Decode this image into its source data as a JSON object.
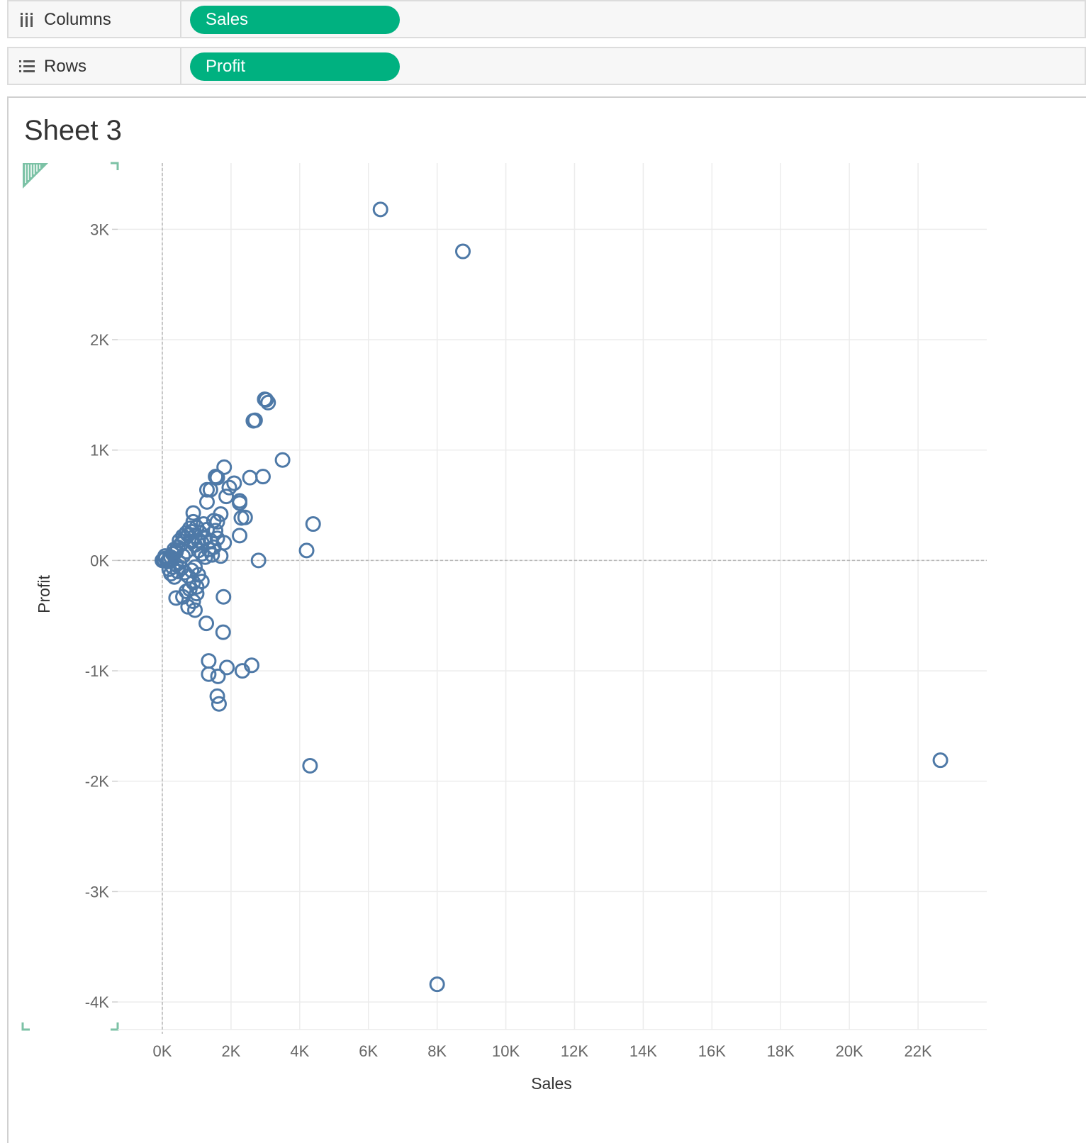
{
  "shelves": {
    "columns": {
      "label": "Columns",
      "icon": "columns-icon",
      "pill": "Sales"
    },
    "rows": {
      "label": "Rows",
      "icon": "rows-icon",
      "pill": "Profit"
    },
    "pill_color": "#00b180"
  },
  "sheet": {
    "title": "Sheet 3"
  },
  "chart_data": {
    "type": "scatter",
    "title": "Sheet 3",
    "xlabel": "Sales",
    "ylabel": "Profit",
    "xlim": [
      -1300,
      24000
    ],
    "ylim": [
      -4250,
      3600
    ],
    "x_ticks": [
      {
        "value": 0,
        "label": "0K"
      },
      {
        "value": 2000,
        "label": "2K"
      },
      {
        "value": 4000,
        "label": "4K"
      },
      {
        "value": 6000,
        "label": "6K"
      },
      {
        "value": 8000,
        "label": "8K"
      },
      {
        "value": 10000,
        "label": "10K"
      },
      {
        "value": 12000,
        "label": "12K"
      },
      {
        "value": 14000,
        "label": "14K"
      },
      {
        "value": 16000,
        "label": "16K"
      },
      {
        "value": 18000,
        "label": "18K"
      },
      {
        "value": 20000,
        "label": "20K"
      },
      {
        "value": 22000,
        "label": "22K"
      }
    ],
    "y_ticks": [
      {
        "value": 3000,
        "label": "3K"
      },
      {
        "value": 2000,
        "label": "2K"
      },
      {
        "value": 1000,
        "label": "1K"
      },
      {
        "value": 0,
        "label": "0K"
      },
      {
        "value": -1000,
        "label": "-1K"
      },
      {
        "value": -2000,
        "label": "-2K"
      },
      {
        "value": -3000,
        "label": "-3K"
      },
      {
        "value": -4000,
        "label": "-4K"
      }
    ],
    "grid": true,
    "mark": "open-circle",
    "mark_color": "#4e79a7",
    "series": [
      {
        "points": [
          [
            6350,
            3180
          ],
          [
            8750,
            2800
          ],
          [
            3020,
            1455
          ],
          [
            3080,
            1430
          ],
          [
            2980,
            1460
          ],
          [
            2700,
            1270
          ],
          [
            2650,
            1265
          ],
          [
            3500,
            910
          ],
          [
            1800,
            845
          ],
          [
            1550,
            760
          ],
          [
            1600,
            750
          ],
          [
            2550,
            750
          ],
          [
            2930,
            760
          ],
          [
            2090,
            700
          ],
          [
            1950,
            660
          ],
          [
            1300,
            640
          ],
          [
            1400,
            640
          ],
          [
            1860,
            580
          ],
          [
            2250,
            520
          ],
          [
            2250,
            540
          ],
          [
            1300,
            530
          ],
          [
            900,
            430
          ],
          [
            1700,
            420
          ],
          [
            2410,
            390
          ],
          [
            2300,
            385
          ],
          [
            4390,
            330
          ],
          [
            1600,
            350
          ],
          [
            1500,
            360
          ],
          [
            2250,
            225
          ],
          [
            1800,
            160
          ],
          [
            1700,
            40
          ],
          [
            2800,
            0
          ],
          [
            4200,
            90
          ],
          [
            1200,
            330
          ],
          [
            1300,
            280
          ],
          [
            1100,
            250
          ],
          [
            1000,
            300
          ],
          [
            1250,
            200
          ],
          [
            1400,
            180
          ],
          [
            1500,
            120
          ],
          [
            900,
            350
          ],
          [
            800,
            290
          ],
          [
            700,
            250
          ],
          [
            600,
            220
          ],
          [
            500,
            180
          ],
          [
            450,
            120
          ],
          [
            400,
            80
          ],
          [
            300,
            60
          ],
          [
            250,
            30
          ],
          [
            200,
            10
          ],
          [
            150,
            -10
          ],
          [
            100,
            20
          ],
          [
            50,
            5
          ],
          [
            0,
            0
          ],
          [
            80,
            40
          ],
          [
            350,
            100
          ],
          [
            550,
            150
          ],
          [
            650,
            200
          ],
          [
            750,
            230
          ],
          [
            850,
            170
          ],
          [
            950,
            140
          ],
          [
            1050,
            90
          ],
          [
            1150,
            60
          ],
          [
            1250,
            30
          ],
          [
            1350,
            100
          ],
          [
            1450,
            50
          ],
          [
            1600,
            200
          ],
          [
            1550,
            270
          ],
          [
            1050,
            180
          ],
          [
            950,
            220
          ],
          [
            850,
            260
          ],
          [
            1150,
            160
          ],
          [
            700,
            80
          ],
          [
            600,
            40
          ],
          [
            500,
            -20
          ],
          [
            400,
            -40
          ],
          [
            300,
            -60
          ],
          [
            200,
            -80
          ],
          [
            250,
            -120
          ],
          [
            350,
            -150
          ],
          [
            450,
            -100
          ],
          [
            550,
            -70
          ],
          [
            650,
            -110
          ],
          [
            750,
            -140
          ],
          [
            850,
            -90
          ],
          [
            950,
            -60
          ],
          [
            1050,
            -130
          ],
          [
            900,
            -200
          ],
          [
            1000,
            -240
          ],
          [
            800,
            -260
          ],
          [
            700,
            -280
          ],
          [
            1150,
            -190
          ],
          [
            1000,
            -300
          ],
          [
            600,
            -330
          ],
          [
            400,
            -340
          ],
          [
            900,
            -370
          ],
          [
            750,
            -420
          ],
          [
            950,
            -450
          ],
          [
            1280,
            -570
          ],
          [
            1770,
            -650
          ],
          [
            1780,
            -330
          ],
          [
            1350,
            -910
          ],
          [
            1880,
            -970
          ],
          [
            2600,
            -950
          ],
          [
            2330,
            -1000
          ],
          [
            1350,
            -1030
          ],
          [
            1620,
            -1050
          ],
          [
            1600,
            -1230
          ],
          [
            1650,
            -1300
          ],
          [
            4300,
            -1860
          ],
          [
            22650,
            -1810
          ],
          [
            8000,
            -3840
          ]
        ]
      }
    ]
  }
}
